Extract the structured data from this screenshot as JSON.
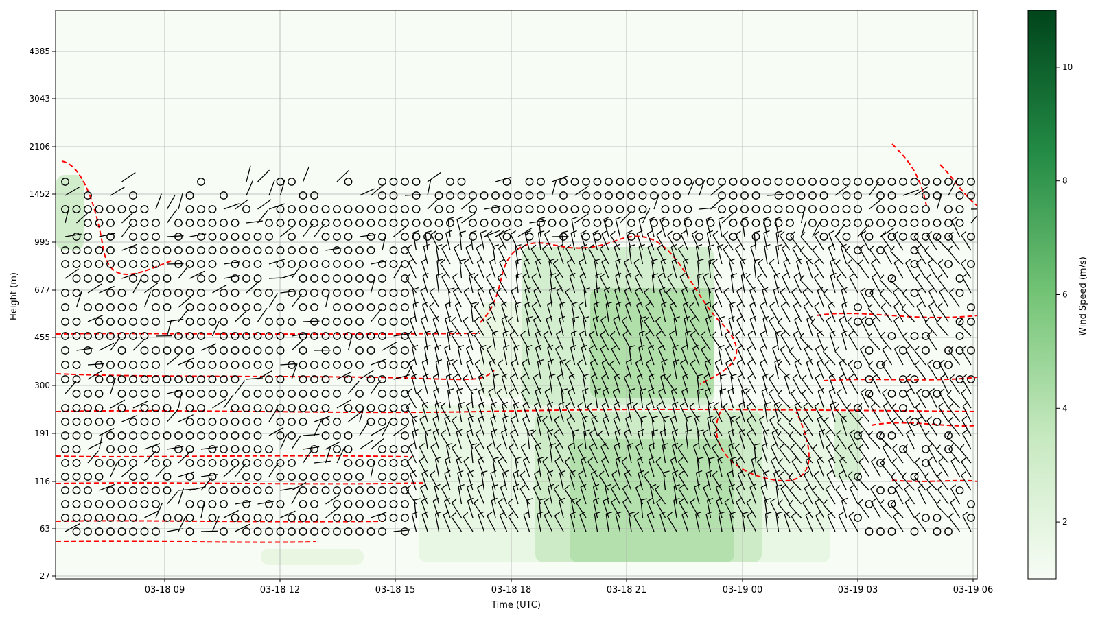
{
  "chart_data": {
    "type": "heatmap",
    "title": "",
    "xlabel": "Time (UTC)",
    "ylabel": "Height (m)",
    "x_ticks": [
      "03-18 09",
      "03-18 12",
      "03-18 15",
      "03-18 18",
      "03-18 21",
      "03-19 00",
      "03-19 03",
      "03-19 06"
    ],
    "y_ticks": [
      "27",
      "63",
      "116",
      "191",
      "300",
      "455",
      "677",
      "995",
      "1452",
      "2106",
      "3043",
      "4385"
    ],
    "colorbar": {
      "label": "Wind Speed (m/s)",
      "ticks": [
        "2",
        "4",
        "6",
        "8",
        "10"
      ],
      "range": [
        1,
        11
      ],
      "colormap": "Greens"
    },
    "grid": true,
    "overlays": [
      "wind barbs",
      "red dashed contours"
    ],
    "colors": {
      "low": "#f7fcf5",
      "high": "#00441b",
      "contour": "#ff0000",
      "barb": "#000000"
    }
  }
}
